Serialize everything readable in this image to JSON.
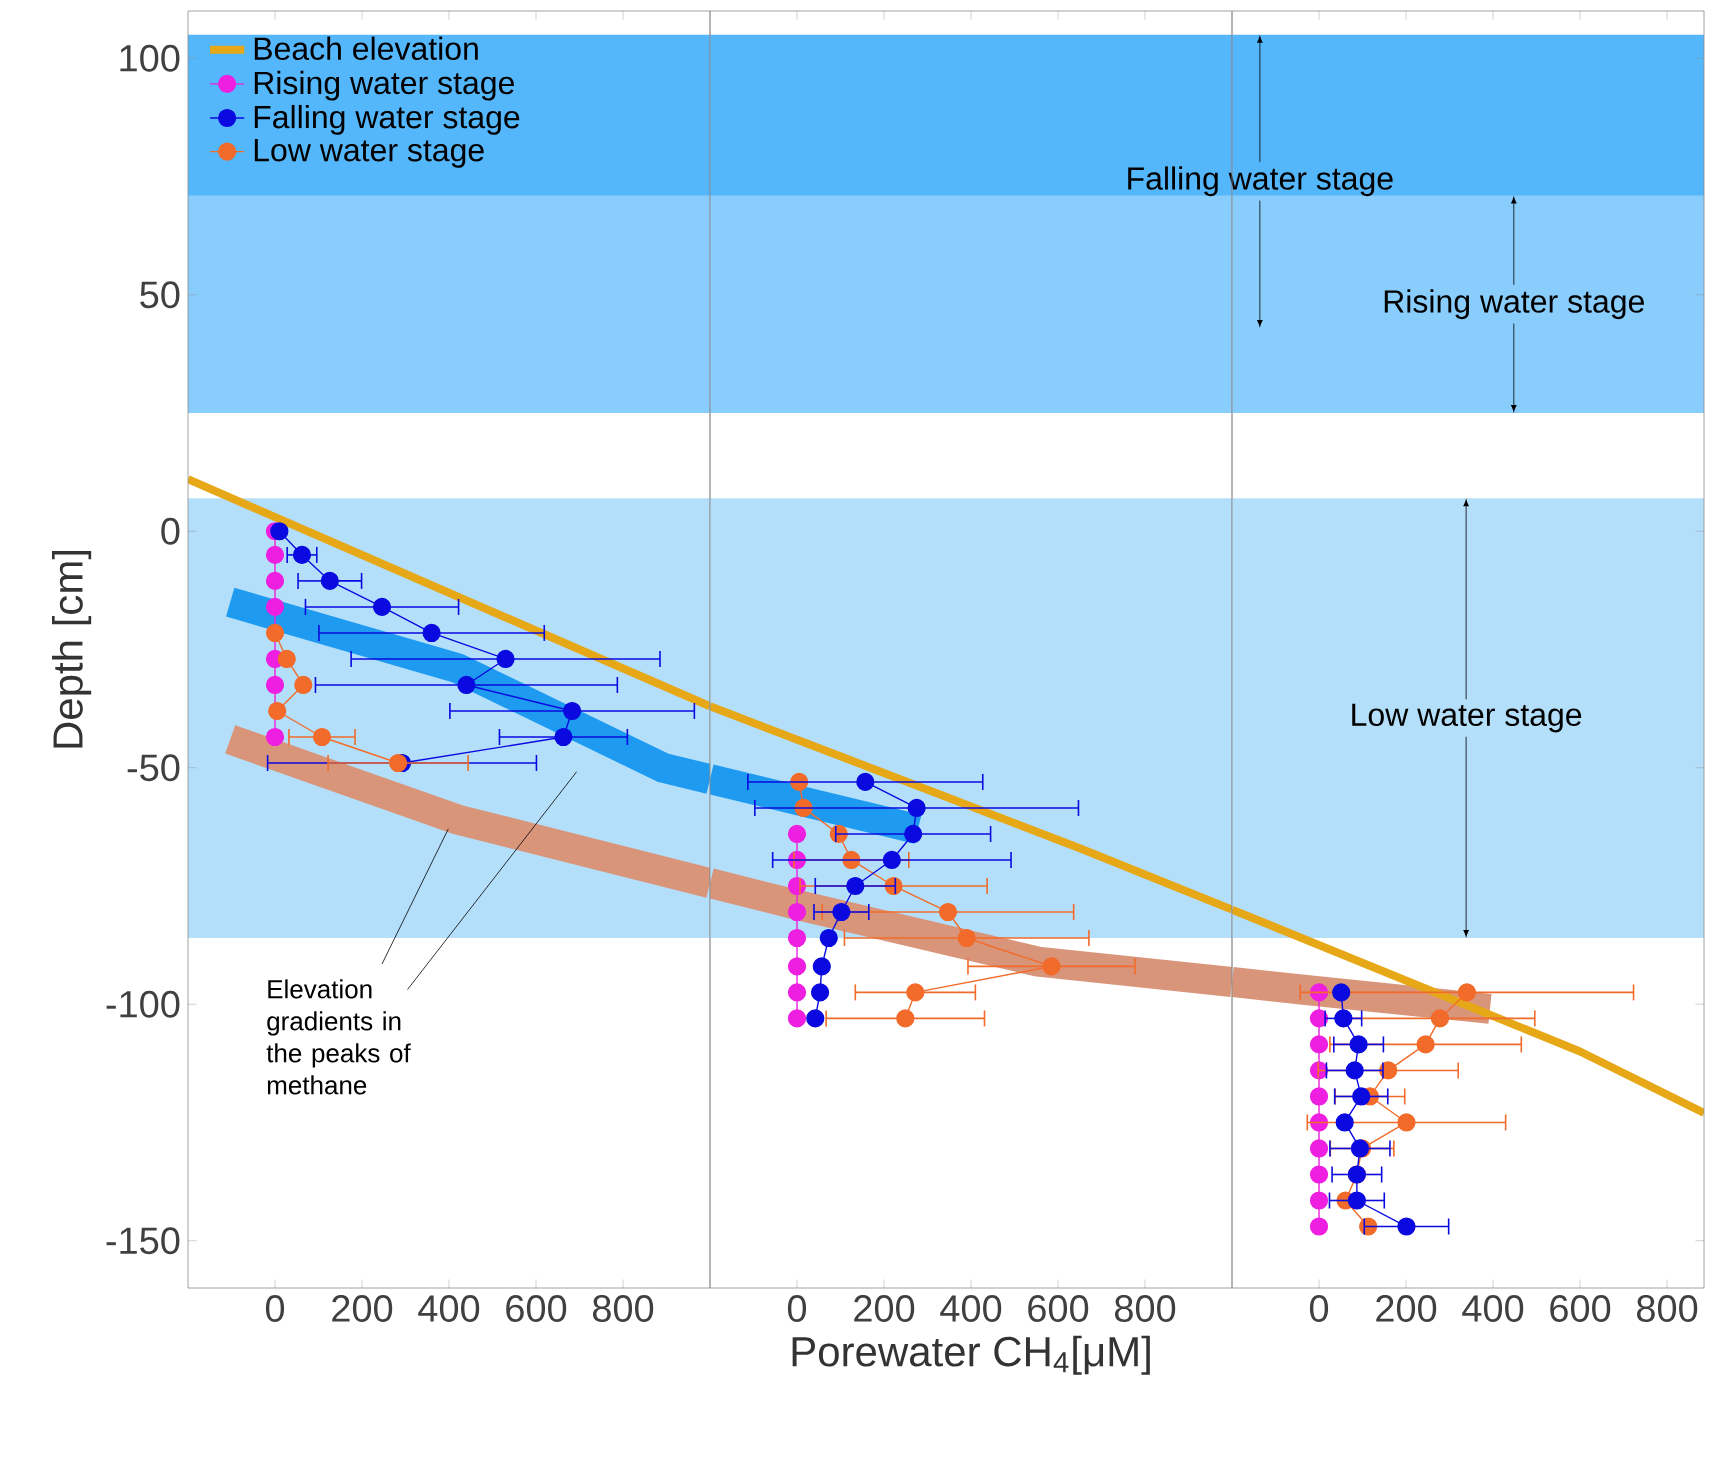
{
  "chart_data": [
    {
      "type": "line",
      "ylabel": "Depth [cm]",
      "xlim": [
        -200,
        1000
      ],
      "ylim": [
        -160,
        110
      ],
      "xticks": [
        0,
        200,
        400,
        600,
        800
      ],
      "yticks": [
        -150,
        -100,
        -50,
        0,
        50,
        100
      ],
      "marker": "circle",
      "legend": "top left",
      "bands": [
        {
          "axis": "y",
          "from": 105,
          "to": 43,
          "color": "#55b7fb"
        },
        {
          "axis": "y",
          "from": 71,
          "to": 25,
          "color": "#88cdfc"
        },
        {
          "axis": "y",
          "from": 7,
          "to": -86,
          "color": "#b4dffa"
        }
      ],
      "annotations": [
        {
          "text": "Elevation gradients in the peaks of methane",
          "x": 398,
          "y": -63
        }
      ],
      "series": [
        {
          "color": "#1e9bf0",
          "marker": "none",
          "x": [
            -103,
            421,
            892,
            1000
          ],
          "values": [
            -15,
            -29,
            -50,
            -52.4
          ]
        },
        {
          "color": "#d9957a",
          "marker": "none",
          "x": [
            -103,
            421,
            1000
          ],
          "values": [
            -44,
            -61,
            -74.4
          ]
        },
        {
          "name": "Beach elevation",
          "color": "#e6a817",
          "marker": "none",
          "x": [
            -200,
            1000
          ],
          "values": [
            11,
            -37
          ]
        },
        {
          "name": "Rising water stage",
          "color": "#ee1fe0",
          "x": [
            0,
            0,
            0,
            0,
            0,
            0,
            0
          ],
          "values": [
            0,
            -5,
            -10.5,
            -16,
            -27,
            -32.5,
            -43.5
          ]
        },
        {
          "name": "Falling water stage",
          "color": "#0a0ae0",
          "x": [
            10,
            62,
            126,
            246,
            360,
            530,
            440,
            683,
            663,
            292
          ],
          "values": [
            0,
            -5,
            -10.5,
            -16,
            -21.5,
            -27,
            -32.5,
            -38,
            -43.5,
            -49
          ],
          "xerrors": [
            null,
            34,
            73,
            176,
            259,
            355,
            347,
            281,
            147,
            309
          ]
        },
        {
          "name": "Low water stage",
          "color": "#f26b2a",
          "x": [
            0,
            27,
            65,
            5,
            108,
            283
          ],
          "values": [
            -21.5,
            -27,
            -32.5,
            -38,
            -43.5,
            -49
          ],
          "xerrors": [
            null,
            null,
            null,
            null,
            76,
            161
          ]
        }
      ]
    },
    {
      "type": "line",
      "xlabel": "Porewater CH$_{4}$[μM]",
      "xlim": [
        -200,
        1000
      ],
      "ylim": [
        -160,
        110
      ],
      "xticks": [
        0,
        200,
        400,
        600,
        800
      ],
      "tick_labels": "x",
      "marker": "circle",
      "bands": [
        {
          "axis": "y",
          "from": 105,
          "to": 43,
          "color": "#55b7fb"
        },
        {
          "axis": "y",
          "from": 71,
          "to": 25,
          "color": "#88cdfc"
        },
        {
          "axis": "y",
          "from": 7,
          "to": -86,
          "color": "#b4dffa"
        }
      ],
      "series": [
        {
          "color": "#1e9bf0",
          "marker": "none",
          "x": [
            -200,
            278
          ],
          "values": [
            -52.4,
            -63
          ]
        },
        {
          "color": "#d9957a",
          "marker": "none",
          "x": [
            -200,
            0,
            554,
            1000
          ],
          "values": [
            -74.4,
            -79,
            -91,
            -95.3
          ]
        },
        {
          "color": "#e6a817",
          "marker": "none",
          "x": [
            -200,
            650,
            1000
          ],
          "values": [
            -37,
            -67,
            -80
          ]
        },
        {
          "color": "#ee1fe0",
          "x": [
            0,
            0,
            0,
            0,
            0,
            0,
            0,
            0
          ],
          "values": [
            -64,
            -69.5,
            -75,
            -80.5,
            -86,
            -92,
            -97.5,
            -103
          ]
        },
        {
          "color": "#f26b2a",
          "x": [
            5,
            15,
            96,
            125,
            222,
            347,
            390,
            585,
            272,
            249
          ],
          "values": [
            -53,
            -58.5,
            -64,
            -69.5,
            -75,
            -80.5,
            -86,
            -92,
            -97.5,
            -103
          ],
          "xerrors": [
            null,
            null,
            null,
            132,
            215,
            289,
            281,
            192,
            138,
            182
          ]
        },
        {
          "color": "#0a0ae0",
          "x": [
            157,
            275,
            267,
            218,
            134,
            102,
            73,
            57,
            53,
            42
          ],
          "values": [
            -53,
            -58.5,
            -64,
            -69.5,
            -75,
            -80.5,
            -86,
            -92,
            -97.5,
            -103
          ],
          "xerrors": [
            270,
            372,
            178,
            274,
            92,
            63,
            null,
            null,
            null,
            null
          ]
        }
      ]
    },
    {
      "type": "line",
      "xlim": [
        -200,
        885
      ],
      "ylim": [
        -160,
        110
      ],
      "xticks": [
        0,
        200,
        400,
        600,
        800
      ],
      "yticks": [
        -150,
        -100,
        -50,
        0,
        50,
        100
      ],
      "tick_labels": "x",
      "marker": "circle",
      "bands": [
        {
          "axis": "y",
          "from": 105,
          "to": 43,
          "label": "Falling water stage",
          "color": "#55b7fb"
        },
        {
          "axis": "y",
          "from": 71,
          "to": 25,
          "label": "Rising water stage",
          "color": "#88cdfc"
        },
        {
          "axis": "y",
          "from": 7,
          "to": -86,
          "label": "Low water stage",
          "color": "#b4dffa"
        }
      ],
      "series": [
        {
          "color": "#d9957a",
          "marker": "none",
          "x": [
            -200,
            -30,
            393
          ],
          "values": [
            -95.3,
            -97,
            -101
          ]
        },
        {
          "color": "#e6a817",
          "marker": "none",
          "x": [
            -200,
            600,
            885
          ],
          "values": [
            -80,
            -110,
            -123
          ]
        },
        {
          "color": "#ee1fe0",
          "x": [
            0,
            0,
            0,
            0,
            0,
            0,
            0,
            0,
            0,
            0
          ],
          "values": [
            -97.5,
            -103,
            -108.5,
            -114,
            -119.5,
            -125,
            -130.5,
            -136,
            -141.5,
            -147
          ]
        },
        {
          "color": "#f26b2a",
          "x": [
            340,
            278,
            245,
            159,
            117,
            201,
            99,
            87,
            61,
            113
          ],
          "values": [
            -97.5,
            -103,
            -108.5,
            -114,
            -119.5,
            -125,
            -130.5,
            -136,
            -141.5,
            -147
          ],
          "xerrors": [
            383,
            218,
            220,
            161,
            80,
            228,
            73,
            null,
            null,
            null
          ]
        },
        {
          "color": "#0a0ae0",
          "x": [
            51,
            56,
            91,
            82,
            97,
            59,
            94,
            87,
            87,
            201
          ],
          "values": [
            -97.5,
            -103,
            -108.5,
            -114,
            -119.5,
            -125,
            -130.5,
            -136,
            -141.5,
            -147
          ],
          "xerrors": [
            null,
            42,
            57,
            65,
            61,
            null,
            69,
            57,
            63,
            97
          ]
        }
      ]
    }
  ]
}
